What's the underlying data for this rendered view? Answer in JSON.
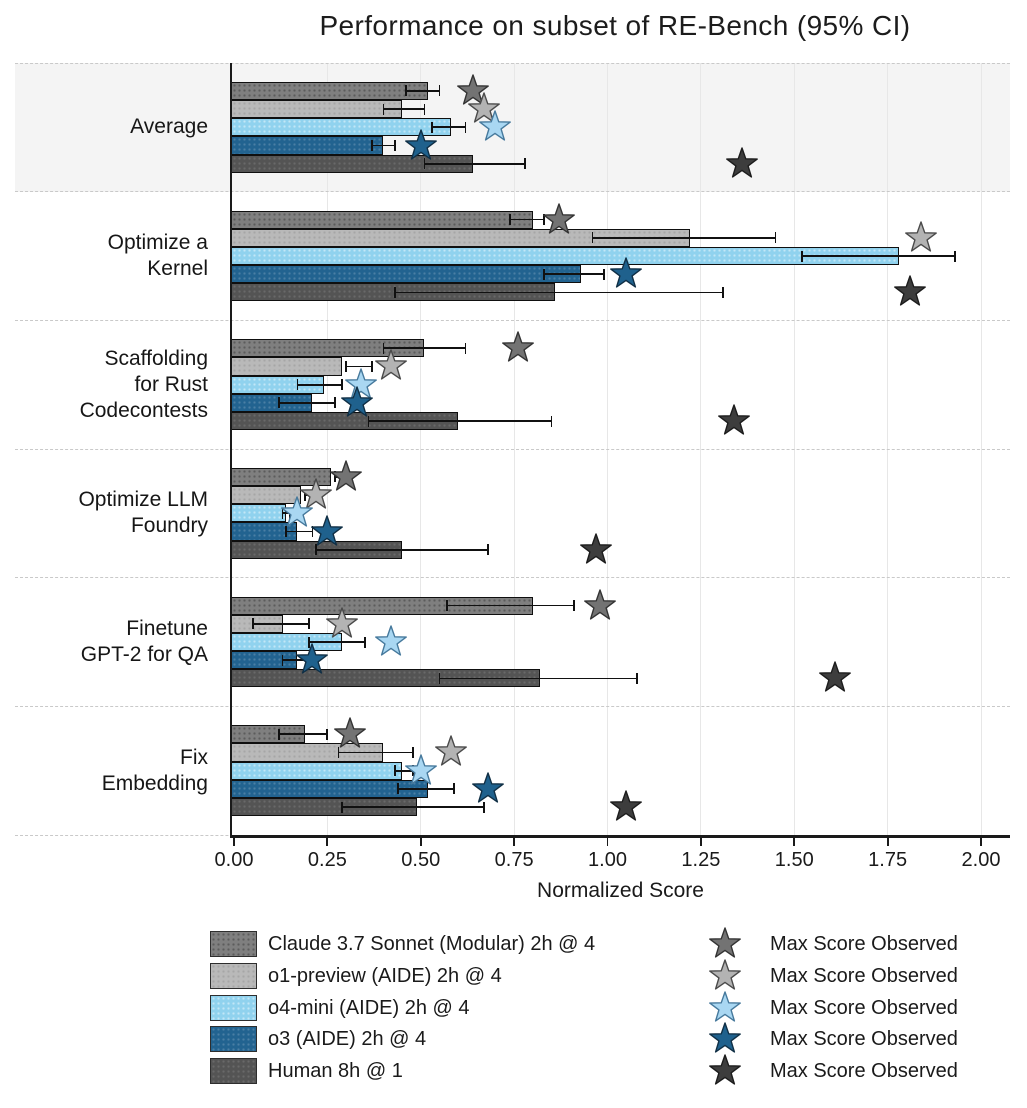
{
  "title": "Performance on subset of RE-Bench (95% CI)",
  "legend": {
    "max_score_label": "Max Score Observed"
  },
  "axis": {
    "xlabel": "Normalized Score",
    "tick_labels": [
      "0.00",
      "0.25",
      "0.50",
      "0.75",
      "1.00",
      "1.25",
      "1.50",
      "1.75",
      "2.00"
    ],
    "tick_values": [
      0,
      0.25,
      0.5,
      0.75,
      1.0,
      1.25,
      1.5,
      1.75,
      2.0
    ]
  },
  "colors": {
    "highlight_band": "#f4f4f4",
    "gridline": "#e7e7e7",
    "separator": "#c9c9c9",
    "axis": "#1a1a1a",
    "error_bar": "#111111",
    "bar_edge": "#0f0f0f"
  },
  "chart_data": {
    "type": "bar",
    "orientation": "horizontal",
    "title": "Performance on subset of RE-Bench (95% CI)",
    "xlabel": "Normalized Score",
    "xlim": [
      0,
      2.0
    ],
    "grid": "vertical gridlines every 0.25; dashed horizontal separators between category bands",
    "legend_position": "below chart, two columns (bars left, max-score stars right)",
    "highlighted_category": "Average",
    "categories": [
      "Average",
      "Optimize a Kernel",
      "Scaffolding for Rust Codecontests",
      "Optimize LLM Foundry",
      "Finetune GPT-2 for QA",
      "Fix Embedding"
    ],
    "category_label_lines": [
      [
        "Average"
      ],
      [
        "Optimize a",
        "Kernel"
      ],
      [
        "Scaffolding",
        "for Rust",
        "Codecontests"
      ],
      [
        "Optimize LLM",
        "Foundry"
      ],
      [
        "Finetune",
        "GPT-2 for QA"
      ],
      [
        "Fix",
        "Embedding"
      ]
    ],
    "series": [
      {
        "name": "Claude 3.7 Sonnet (Modular) 2h @ 4",
        "color": "#7f7f7f",
        "dot_color": "rgba(0,0,0,0.28)",
        "star_color": "#737373",
        "star_stroke": "#333333",
        "values": [
          0.52,
          0.8,
          0.51,
          0.26,
          0.8,
          0.19
        ],
        "ci_low": [
          0.46,
          0.74,
          0.4,
          0.27,
          0.57,
          0.12
        ],
        "ci_high": [
          0.55,
          0.83,
          0.62,
          0.3,
          0.91,
          0.25
        ],
        "max_observed": [
          0.64,
          0.87,
          0.76,
          0.3,
          0.98,
          0.31
        ]
      },
      {
        "name": "o1-preview (AIDE) 2h @ 4",
        "color": "#b9b9b9",
        "dot_color": "rgba(0,0,0,0.10)",
        "star_color": "#b3b3b3",
        "star_stroke": "#4a4a4a",
        "values": [
          0.45,
          1.22,
          0.29,
          0.18,
          0.13,
          0.4
        ],
        "ci_low": [
          0.4,
          0.96,
          0.3,
          0.19,
          0.05,
          0.28
        ],
        "ci_high": [
          0.51,
          1.45,
          0.37,
          0.21,
          0.2,
          0.48
        ],
        "max_observed": [
          0.67,
          1.84,
          0.42,
          0.22,
          0.29,
          0.58
        ]
      },
      {
        "name": "o4-mini (AIDE) 2h @ 4",
        "color": "#90d2ee",
        "dot_color": "rgba(255,255,255,0.45)",
        "star_color": "#a9d7f2",
        "star_stroke": "#46799c",
        "values": [
          0.58,
          1.78,
          0.24,
          0.14,
          0.29,
          0.45
        ],
        "ci_low": [
          0.53,
          1.52,
          0.17,
          0.13,
          0.2,
          0.43
        ],
        "ci_high": [
          0.62,
          1.93,
          0.29,
          0.15,
          0.35,
          0.48
        ],
        "max_observed": [
          0.7,
          null,
          0.34,
          0.17,
          0.42,
          0.5
        ]
      },
      {
        "name": "o3 (AIDE) 2h @ 4",
        "color": "#226390",
        "dot_color": "rgba(255,255,255,0.18)",
        "star_color": "#1f618d",
        "star_stroke": "#102f45",
        "values": [
          0.4,
          0.93,
          0.21,
          0.17,
          0.17,
          0.52
        ],
        "ci_low": [
          0.37,
          0.83,
          0.12,
          0.14,
          0.13,
          0.44
        ],
        "ci_high": [
          0.43,
          0.99,
          0.27,
          0.21,
          0.21,
          0.59
        ],
        "max_observed": [
          0.5,
          1.05,
          0.33,
          0.25,
          0.21,
          0.68
        ]
      },
      {
        "name": "Human 8h @ 1",
        "color": "#545454",
        "dot_color": "rgba(255,255,255,0.12)",
        "star_color": "#3d3d3d",
        "star_stroke": "#1c1c1c",
        "values": [
          0.64,
          0.86,
          0.6,
          0.45,
          0.82,
          0.49
        ],
        "ci_low": [
          0.51,
          0.43,
          0.36,
          0.22,
          0.55,
          0.29
        ],
        "ci_high": [
          0.78,
          1.31,
          0.85,
          0.68,
          1.08,
          0.67
        ],
        "max_observed": [
          1.36,
          1.81,
          1.34,
          0.97,
          1.61,
          1.05
        ]
      }
    ]
  }
}
